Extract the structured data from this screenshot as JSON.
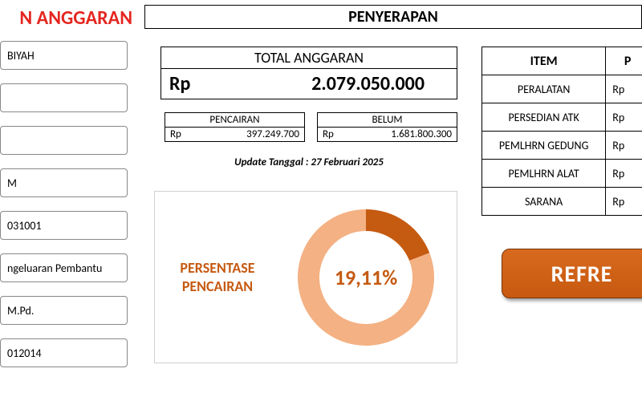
{
  "header": {
    "main_title": "N ANGGARAN",
    "penyerapan_title": "PENYERAPAN"
  },
  "left_fields": {
    "f1": "BIYAH",
    "f2": "",
    "f3": "",
    "f4": "M",
    "f5": "031001",
    "f6": "ngeluaran Pembantu",
    "f7": " M.Pd.",
    "f8": "012014"
  },
  "total": {
    "label": "TOTAL ANGGARAN",
    "currency": "Rp",
    "amount": "2.079.050.000"
  },
  "pencairan": {
    "label": "PENCAIRAN",
    "currency": "Rp",
    "amount": "397.249.700"
  },
  "belum": {
    "label": "BELUM",
    "currency": "Rp",
    "amount": "1.681.800.300"
  },
  "update_text": "Update Tanggal : 27 Februari 2025",
  "chart": {
    "label_line1": "PERSENTASE",
    "label_line2": "PENCAIRAN",
    "percent_text": "19,11%",
    "percent_value": 19.11,
    "radius_outer": 85,
    "radius_inner": 58,
    "color_filled": "#c55a11",
    "color_remaining": "#f4b183",
    "text_color": "#c55a11"
  },
  "item_table": {
    "header_item": "ITEM",
    "header_p": "P",
    "currency": "Rp",
    "rows": [
      {
        "name": "PERALATAN"
      },
      {
        "name": "PERSEDIAN ATK"
      },
      {
        "name": "PEMLHRN GEDUNG"
      },
      {
        "name": "PEMLHRN ALAT"
      },
      {
        "name": "SARANA"
      }
    ]
  },
  "refresh_label": "REFRE"
}
